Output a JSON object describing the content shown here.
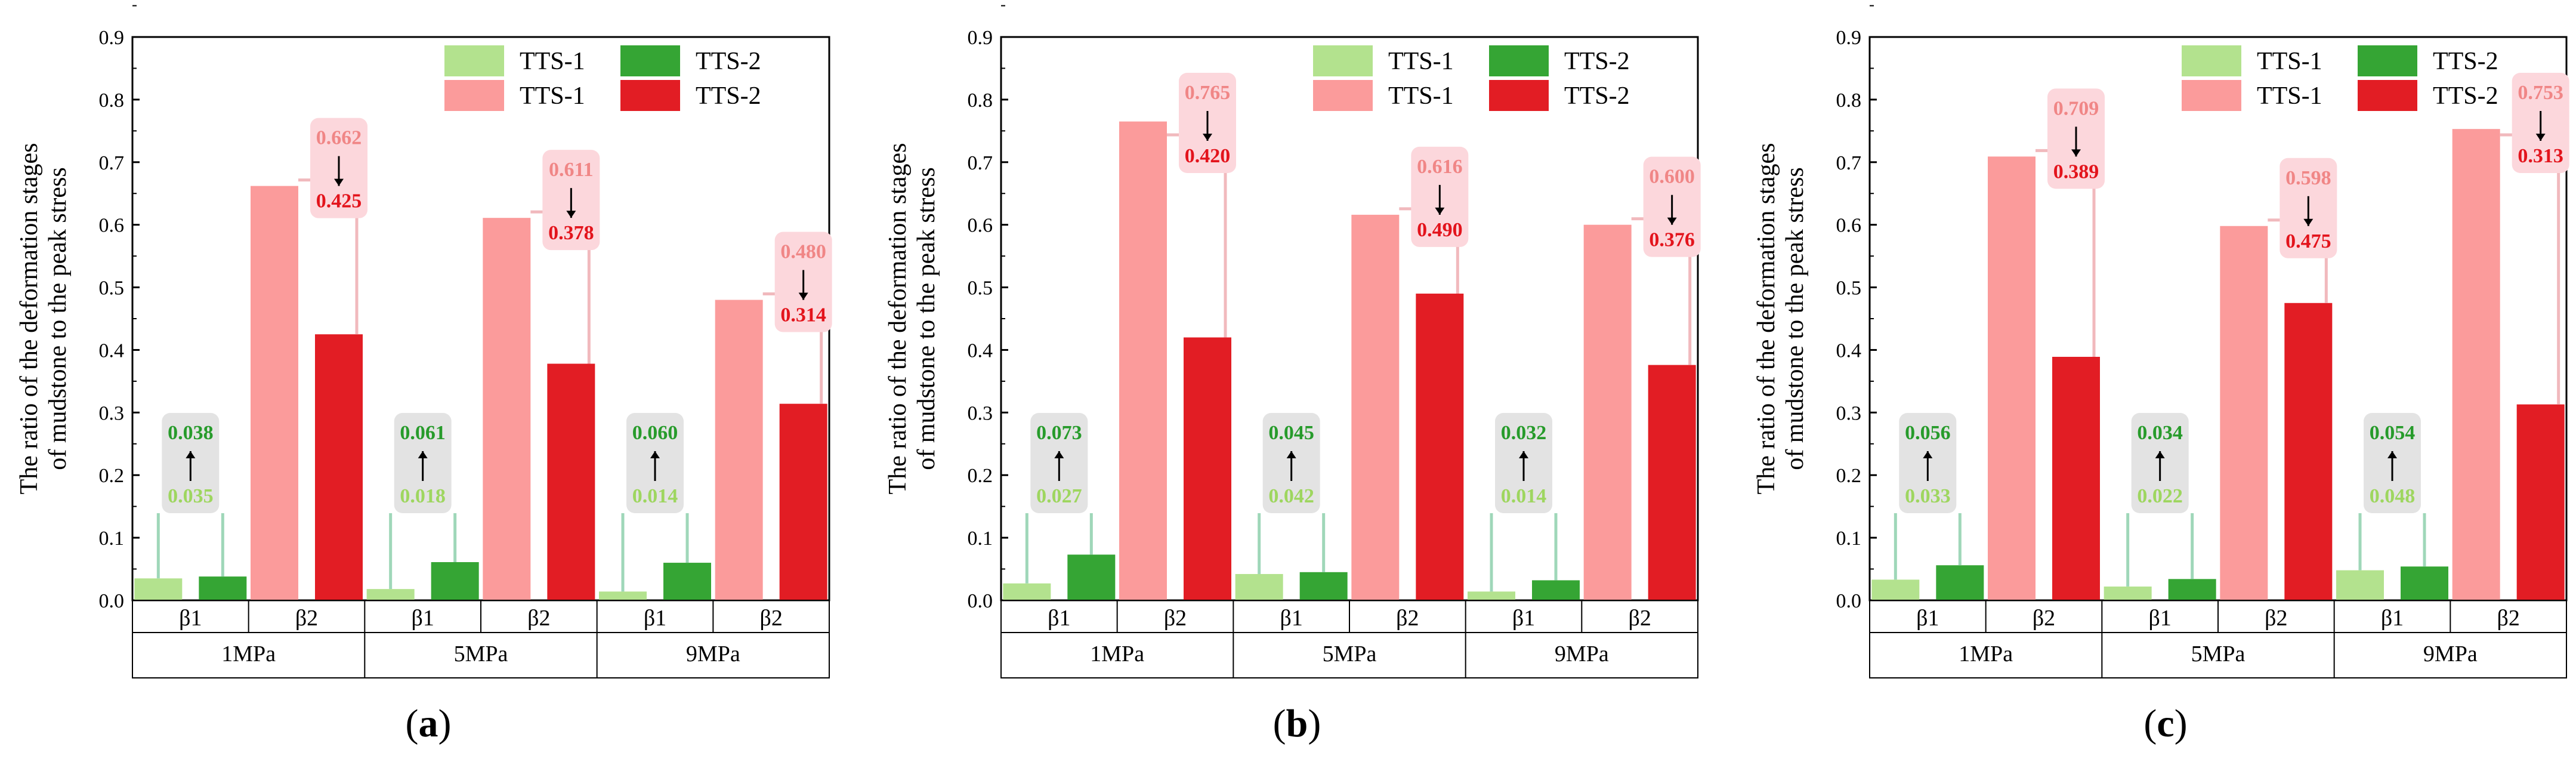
{
  "chart_data": [
    {
      "panel": "(a)",
      "panel_letter": "a",
      "type": "bar",
      "ylabel_line1": "The ratio of the deformation stages",
      "ylabel_line2": "of mudstone to the peak stress",
      "ylim": [
        0,
        0.9
      ],
      "yticks": [
        "0.0",
        "0.1",
        "0.2",
        "0.3",
        "0.4",
        "0.5",
        "0.6",
        "0.7",
        "0.8",
        "0.9"
      ],
      "legend": [
        "TTS-1",
        "TTS-2",
        "TTS-1",
        "TTS-2"
      ],
      "groups": [
        "1MPa",
        "5MPa",
        "9MPa"
      ],
      "params": [
        "β1",
        "β2",
        "β1",
        "β2",
        "β1",
        "β2"
      ],
      "beta1": {
        "tts1": [
          0.035,
          0.018,
          0.014
        ],
        "tts2": [
          0.038,
          0.061,
          0.06
        ],
        "labels_tts1": [
          "0.035",
          "0.018",
          "0.014"
        ],
        "labels_tts2": [
          "0.038",
          "0.061",
          "0.060"
        ]
      },
      "beta2": {
        "tts1": [
          0.662,
          0.611,
          0.48
        ],
        "tts2": [
          0.425,
          0.378,
          0.314
        ],
        "labels_tts1": [
          "0.662",
          "0.611",
          "0.480"
        ],
        "labels_tts2": [
          "0.425",
          "0.378",
          "0.314"
        ]
      }
    },
    {
      "panel": "(b)",
      "panel_letter": "b",
      "type": "bar",
      "ylabel_line1": "The ratio of the deformation stages",
      "ylabel_line2": "of mudstone to the peak stress",
      "ylim": [
        0,
        0.9
      ],
      "yticks": [
        "0.0",
        "0.1",
        "0.2",
        "0.3",
        "0.4",
        "0.5",
        "0.6",
        "0.7",
        "0.8",
        "0.9"
      ],
      "legend": [
        "TTS-1",
        "TTS-2",
        "TTS-1",
        "TTS-2"
      ],
      "groups": [
        "1MPa",
        "5MPa",
        "9MPa"
      ],
      "params": [
        "β1",
        "β2",
        "β1",
        "β2",
        "β1",
        "β2"
      ],
      "beta1": {
        "tts1": [
          0.027,
          0.042,
          0.014
        ],
        "tts2": [
          0.073,
          0.045,
          0.032
        ],
        "labels_tts1": [
          "0.027",
          "0.042",
          "0.014"
        ],
        "labels_tts2": [
          "0.073",
          "0.045",
          "0.032"
        ]
      },
      "beta2": {
        "tts1": [
          0.765,
          0.616,
          0.6
        ],
        "tts2": [
          0.42,
          0.49,
          0.376
        ],
        "labels_tts1": [
          "0.765",
          "0.616",
          "0.600"
        ],
        "labels_tts2": [
          "0.420",
          "0.490",
          "0.376"
        ]
      }
    },
    {
      "panel": "(c)",
      "panel_letter": "c",
      "type": "bar",
      "ylabel_line1": "The ratio of the deformation stages",
      "ylabel_line2": "of mudstone to the peak stress",
      "ylim": [
        0,
        0.9
      ],
      "yticks": [
        "0.0",
        "0.1",
        "0.2",
        "0.3",
        "0.4",
        "0.5",
        "0.6",
        "0.7",
        "0.8",
        "0.9"
      ],
      "legend": [
        "TTS-1",
        "TTS-2",
        "TTS-1",
        "TTS-2"
      ],
      "groups": [
        "1MPa",
        "5MPa",
        "9MPa"
      ],
      "params": [
        "β1",
        "β2",
        "β1",
        "β2",
        "β1",
        "β2"
      ],
      "beta1": {
        "tts1": [
          0.033,
          0.022,
          0.048
        ],
        "tts2": [
          0.056,
          0.034,
          0.054
        ],
        "labels_tts1": [
          "0.033",
          "0.022",
          "0.048"
        ],
        "labels_tts2": [
          "0.056",
          "0.034",
          "0.054"
        ]
      },
      "beta2": {
        "tts1": [
          0.709,
          0.598,
          0.753
        ],
        "tts2": [
          0.389,
          0.475,
          0.313
        ],
        "labels_tts1": [
          "0.709",
          "0.598",
          "0.753"
        ],
        "labels_tts2": [
          "0.389",
          "0.475",
          "0.313"
        ]
      }
    }
  ],
  "colors": {
    "beta1_tts1": "#b3e28e",
    "beta1_tts2": "#35a534",
    "beta2_tts1": "#fb9b9b",
    "beta2_tts2": "#e21d24",
    "green_text_light": "#9ed65f",
    "green_text_dark": "#279b2b",
    "red_text_light": "#f08686",
    "red_text_dark": "#e3141c",
    "green_box": "#e3e3e3",
    "red_box": "#fcd7dc",
    "green_line": "#9fd7b9",
    "red_line": "#f1b9bd"
  }
}
